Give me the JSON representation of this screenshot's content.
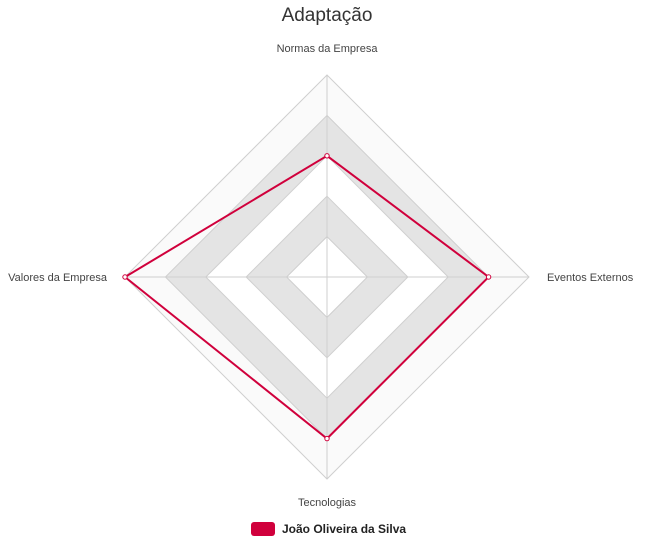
{
  "chart_data": {
    "type": "radar",
    "title": "Adaptação",
    "axes": [
      "Normas da Empresa",
      "Eventos Externos",
      "Tecnologias",
      "Valores da Empresa"
    ],
    "rlim": [
      0,
      5
    ],
    "rings": 5,
    "grid": true,
    "alternating_bands": true,
    "legend_position": "bottom",
    "series": [
      {
        "name": "João Oliveira da Silva",
        "values": [
          3,
          4,
          4,
          5
        ],
        "color": "#d0003c"
      }
    ]
  },
  "colors": {
    "grid_line": "#cfcfcf",
    "band_fill": "#e4e4e4",
    "outer_band_fill": "#fafafa",
    "series_line": "#d0003c"
  }
}
